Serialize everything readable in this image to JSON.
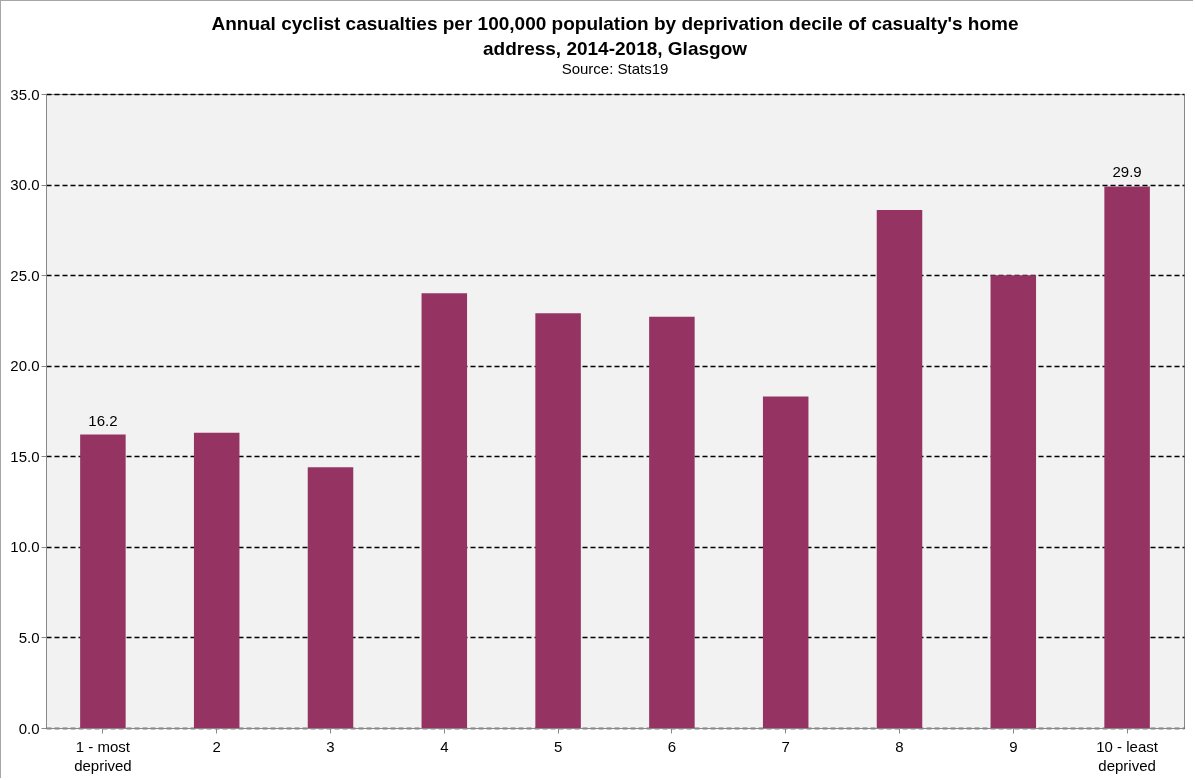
{
  "chart_data": {
    "type": "bar",
    "title": "Annual cyclist casualties per 100,000 population by deprivation decile of casualty's home address, 2014-2018, Glasgow",
    "subtitle": "Source: Stats19",
    "categories": [
      "1 - most deprived",
      "2",
      "3",
      "4",
      "5",
      "6",
      "7",
      "8",
      "9",
      "10 - least deprived"
    ],
    "values": [
      16.2,
      16.3,
      14.4,
      24.0,
      22.9,
      22.7,
      18.3,
      28.6,
      25.0,
      29.9
    ],
    "value_labels": [
      "16.2",
      null,
      null,
      null,
      null,
      null,
      null,
      null,
      null,
      "29.9"
    ],
    "color": "#953462",
    "ylim": [
      0,
      35
    ],
    "yticks": [
      {
        "value": 0,
        "label": "0.0"
      },
      {
        "value": 5,
        "label": "5.0"
      },
      {
        "value": 10,
        "label": "10.0"
      },
      {
        "value": 15,
        "label": "15.0"
      },
      {
        "value": 20,
        "label": "20.0"
      },
      {
        "value": 25,
        "label": "25.0"
      },
      {
        "value": 30,
        "label": "30.0"
      },
      {
        "value": 35,
        "label": "35.0"
      }
    ],
    "grid": "y"
  }
}
